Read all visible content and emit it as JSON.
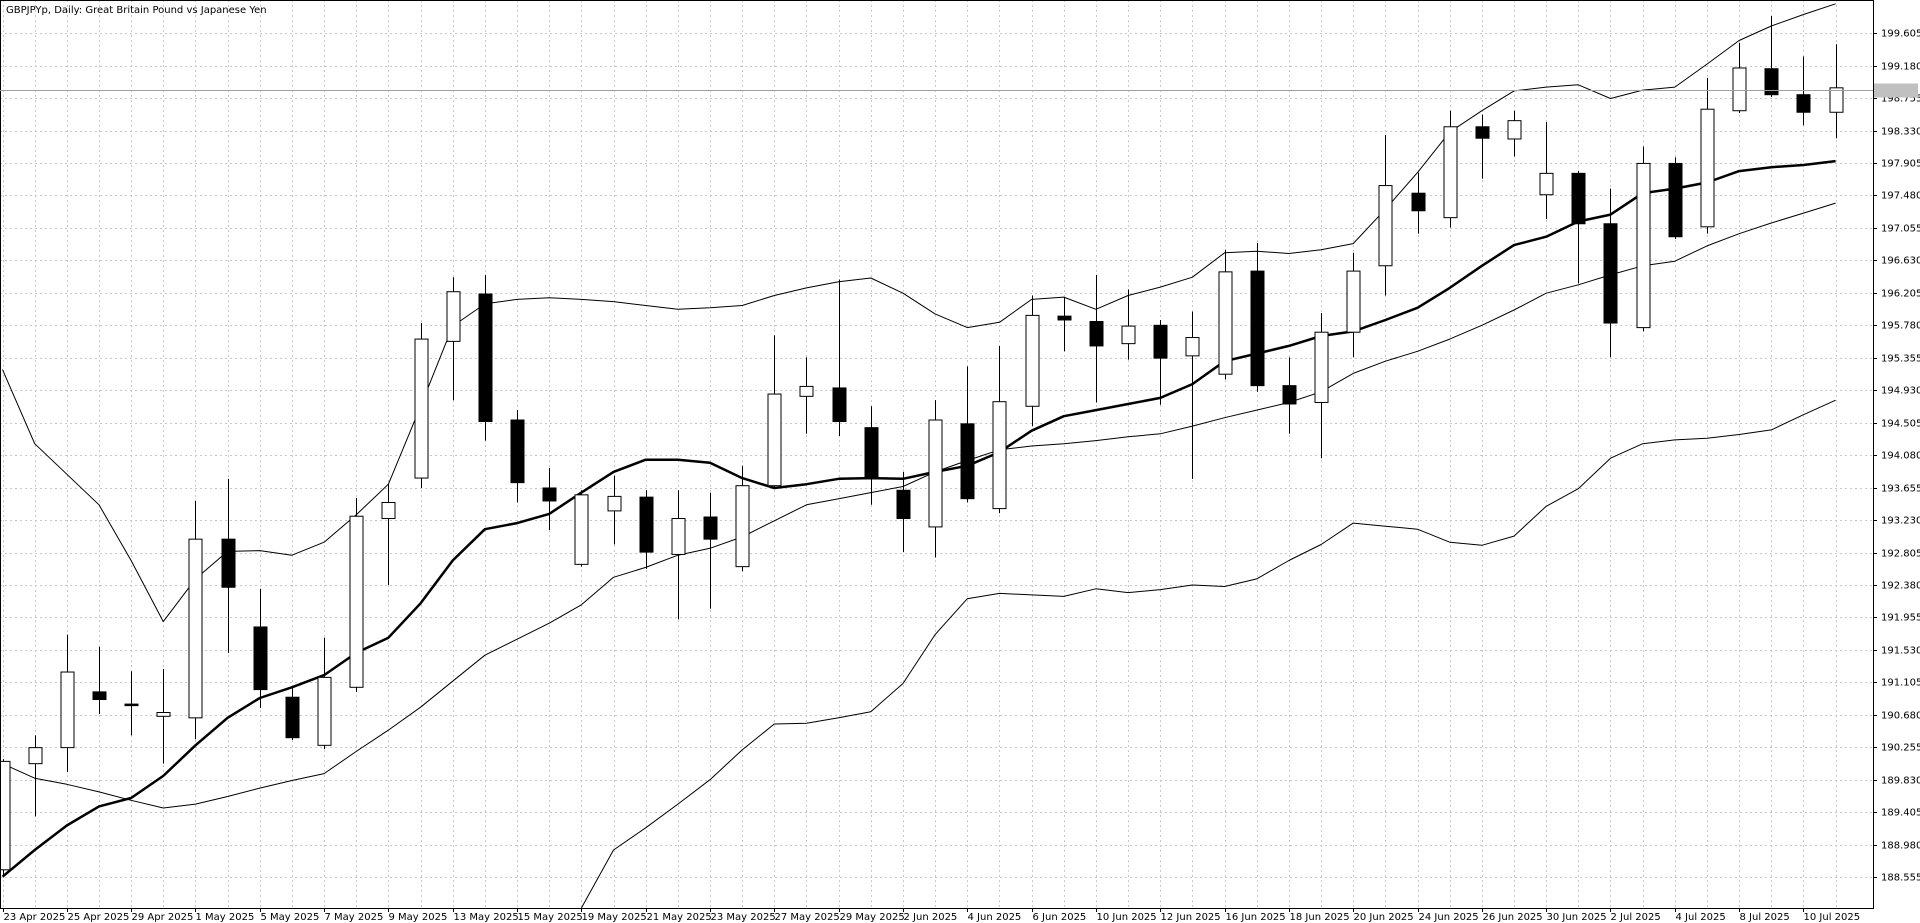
{
  "chart_data": {
    "type": "candlestick",
    "title": "GBPJPYp, Daily:  Great Britain Pound vs Japanese Yen",
    "categories": [
      "23 Apr 2025",
      null,
      "25 Apr 2025",
      null,
      "29 Apr 2025",
      null,
      "1 May 2025",
      null,
      "5 May 2025",
      null,
      "7 May 2025",
      null,
      "9 May 2025",
      null,
      "13 May 2025",
      null,
      "15 May 2025",
      null,
      "19 May 2025",
      null,
      "21 May 2025",
      null,
      "23 May 2025",
      null,
      "27 May 2025",
      null,
      "29 May 2025",
      null,
      "2 Jun 2025",
      null,
      "4 Jun 2025",
      null,
      "6 Jun 2025",
      null,
      "10 Jun 2025",
      null,
      "12 Jun 2025",
      null,
      "16 Jun 2025",
      null,
      "18 Jun 2025",
      null,
      "20 Jun 2025",
      null,
      "24 Jun 2025",
      null,
      "26 Jun 2025",
      null,
      "30 Jun 2025",
      null,
      "2 Jul 2025",
      null,
      "4 Jul 2025",
      null,
      "8 Jul 2025",
      null,
      "10 Jul 2025",
      null
    ],
    "open": [
      188.65,
      190.04,
      190.25,
      190.98,
      190.82,
      190.66,
      190.64,
      192.98,
      191.83,
      190.91,
      190.28,
      191.04,
      193.25,
      193.78,
      195.57,
      196.19,
      194.54,
      193.65,
      192.65,
      193.35,
      193.53,
      192.78,
      193.27,
      192.62,
      193.68,
      194.85,
      194.96,
      194.44,
      193.62,
      193.14,
      194.49,
      193.38,
      194.72,
      195.9,
      195.83,
      195.54,
      195.78,
      195.38,
      195.14,
      196.49,
      194.99,
      194.77,
      195.69,
      196.56,
      197.51,
      197.19,
      198.38,
      198.22,
      197.49,
      197.77,
      197.11,
      195.75,
      197.9,
      197.07,
      198.59,
      199.14,
      198.8,
      198.57
    ],
    "high": [
      190.1,
      190.41,
      191.73,
      191.57,
      191.25,
      191.28,
      193.48,
      193.77,
      192.33,
      191.04,
      191.69,
      193.52,
      193.7,
      195.81,
      196.41,
      196.44,
      194.67,
      193.91,
      193.62,
      193.81,
      193.62,
      193.62,
      193.59,
      193.94,
      195.65,
      195.36,
      196.38,
      194.72,
      193.86,
      194.8,
      195.24,
      195.51,
      196.17,
      196.14,
      196.44,
      196.25,
      195.85,
      195.96,
      196.77,
      196.86,
      195.36,
      195.94,
      196.73,
      198.27,
      197.78,
      198.59,
      198.54,
      198.59,
      198.44,
      197.8,
      197.57,
      198.12,
      197.98,
      199.02,
      199.48,
      199.83,
      199.3,
      199.46
    ],
    "low": [
      188.55,
      189.35,
      189.93,
      190.69,
      190.41,
      190.04,
      190.36,
      191.49,
      190.77,
      190.35,
      190.23,
      190.98,
      192.38,
      193.65,
      194.8,
      194.27,
      193.46,
      193.1,
      192.62,
      192.91,
      192.59,
      191.93,
      192.07,
      192.56,
      193.64,
      194.36,
      194.33,
      193.43,
      192.81,
      192.74,
      193.46,
      193.32,
      194.46,
      195.44,
      194.77,
      195.33,
      194.74,
      193.77,
      195.07,
      194.91,
      194.36,
      194.04,
      195.36,
      196.17,
      196.98,
      197.06,
      197.7,
      197.99,
      197.17,
      196.33,
      195.36,
      195.7,
      196.91,
      196.98,
      198.56,
      198.77,
      198.4,
      198.23
    ],
    "close": [
      190.07,
      190.25,
      191.24,
      190.88,
      190.8,
      190.71,
      192.98,
      192.35,
      191.01,
      190.38,
      191.17,
      193.28,
      193.46,
      195.6,
      196.22,
      194.52,
      193.72,
      193.48,
      193.56,
      193.54,
      192.81,
      193.25,
      192.98,
      193.68,
      194.88,
      194.98,
      194.52,
      193.8,
      193.25,
      194.54,
      193.51,
      194.78,
      195.91,
      195.85,
      195.51,
      195.77,
      195.35,
      195.62,
      196.48,
      194.99,
      194.75,
      195.69,
      196.49,
      197.61,
      197.28,
      198.38,
      198.23,
      198.46,
      197.77,
      197.11,
      195.81,
      197.9,
      196.94,
      198.61,
      199.15,
      198.8,
      198.57,
      198.89
    ],
    "up_color": "#ffffff",
    "down_color": "#000000",
    "overlays": [
      {
        "color": "#000000",
        "values": [
          188.56,
          188.91,
          189.23,
          189.48,
          189.59,
          189.88,
          190.28,
          190.64,
          190.9,
          191.04,
          191.2,
          191.49,
          191.69,
          192.14,
          192.7,
          193.11,
          193.19,
          193.31,
          193.59,
          193.86,
          194.02,
          194.02,
          193.98,
          193.78,
          193.65,
          193.7,
          193.77,
          193.78,
          193.77,
          193.86,
          193.94,
          194.12,
          194.4,
          194.59,
          194.67,
          194.75,
          194.83,
          195.01,
          195.31,
          195.41,
          195.51,
          195.64,
          195.7,
          195.85,
          196.01,
          196.27,
          196.56,
          196.83,
          196.94,
          197.14,
          197.23,
          197.51,
          197.57,
          197.65,
          197.8,
          197.85,
          197.88,
          197.93
        ]
      },
      {
        "color": "#000000",
        "values": [
          195.2,
          194.23,
          193.83,
          193.43,
          192.7,
          191.9,
          192.46,
          192.82,
          192.83,
          192.77,
          192.94,
          193.3,
          193.7,
          194.72,
          195.77,
          196.06,
          196.12,
          196.14,
          196.12,
          196.09,
          196.04,
          195.99,
          196.01,
          196.04,
          196.17,
          196.27,
          196.35,
          196.4,
          196.2,
          195.93,
          195.75,
          195.82,
          196.12,
          196.15,
          195.99,
          196.17,
          196.28,
          196.41,
          196.73,
          196.75,
          196.72,
          196.77,
          196.85,
          197.3,
          197.78,
          198.31,
          198.59,
          198.85,
          198.9,
          198.93,
          198.75,
          198.86,
          198.9,
          199.2,
          199.51,
          199.7,
          199.85,
          199.99
        ]
      },
      {
        "color": "#000000",
        "values": [
          190.04,
          189.85,
          189.77,
          189.67,
          189.56,
          189.46,
          189.51,
          189.61,
          189.72,
          189.82,
          189.91,
          190.2,
          190.48,
          190.78,
          191.12,
          191.46,
          191.67,
          191.88,
          192.12,
          192.48,
          192.61,
          192.77,
          192.86,
          193.01,
          193.22,
          193.43,
          193.51,
          193.59,
          193.67,
          193.86,
          194.01,
          194.15,
          194.2,
          194.23,
          194.27,
          194.32,
          194.36,
          194.46,
          194.57,
          194.67,
          194.77,
          194.91,
          195.15,
          195.31,
          195.44,
          195.6,
          195.78,
          195.98,
          196.2,
          196.31,
          196.44,
          196.56,
          196.62,
          196.82,
          196.98,
          197.12,
          197.25,
          197.38
        ]
      },
      {
        "color": "#000000",
        "values": [
          null,
          null,
          null,
          null,
          null,
          null,
          null,
          null,
          null,
          null,
          null,
          null,
          null,
          null,
          null,
          null,
          null,
          null,
          188.15,
          188.91,
          189.2,
          189.51,
          189.83,
          190.22,
          190.56,
          190.57,
          190.64,
          190.72,
          191.09,
          191.73,
          192.2,
          192.27,
          192.25,
          192.23,
          192.33,
          192.28,
          192.32,
          192.38,
          192.36,
          192.46,
          192.7,
          192.91,
          193.19,
          193.15,
          193.11,
          192.94,
          192.9,
          193.02,
          193.41,
          193.64,
          194.04,
          194.23,
          194.28,
          194.3,
          194.35,
          194.41,
          194.61,
          194.8
        ]
      }
    ],
    "current_price": 198.86,
    "ylim": [
      188.15,
      200.04
    ],
    "yticks": [
      188.555,
      {
        "value": 188.98,
        "label": "188.980"
      },
      189.405,
      {
        "value": 189.83,
        "label": "189.830"
      },
      190.255,
      {
        "value": 190.68,
        "label": "190.680"
      },
      191.105,
      {
        "value": 191.53,
        "label": "191.530"
      },
      191.955,
      {
        "value": 192.38,
        "label": "192.380"
      },
      192.805,
      {
        "value": 193.23,
        "label": "193.230"
      },
      193.655,
      {
        "value": 194.08,
        "label": "194.080"
      },
      194.505,
      {
        "value": 194.93,
        "label": "194.930"
      },
      195.355,
      {
        "value": 195.78,
        "label": "195.780"
      },
      196.205,
      {
        "value": 196.63,
        "label": "196.630"
      },
      197.055,
      {
        "value": 197.48,
        "label": "197.480"
      },
      197.905,
      {
        "value": 198.33,
        "label": "198.330"
      },
      198.755,
      {
        "value": 199.18,
        "label": "199.180"
      },
      199.605
    ],
    "grid": true
  }
}
